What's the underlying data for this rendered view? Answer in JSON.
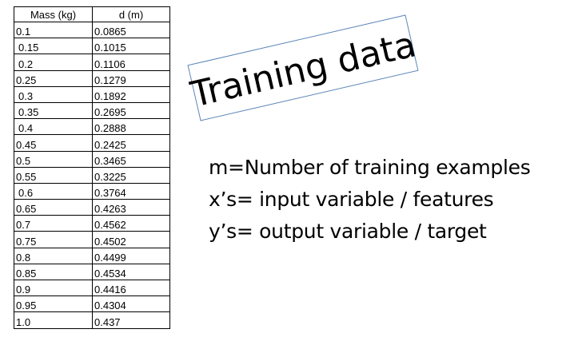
{
  "table": {
    "headers": {
      "mass": "Mass (kg)",
      "d": "d (m)"
    },
    "rows": [
      {
        "mass": "0.1",
        "d": "0.0865",
        "indent": false
      },
      {
        "mass": "0.15",
        "d": "0.1015",
        "indent": true
      },
      {
        "mass": "0.2",
        "d": "0.1106",
        "indent": true
      },
      {
        "mass": "0.25",
        "d": "0.1279",
        "indent": false
      },
      {
        "mass": "0.3",
        "d": "0.1892",
        "indent": true
      },
      {
        "mass": "0.35",
        "d": "0.2695",
        "indent": true
      },
      {
        "mass": "0.4",
        "d": "0.2888",
        "indent": true
      },
      {
        "mass": "0.45",
        "d": "0.2425",
        "indent": false
      },
      {
        "mass": "0.5",
        "d": "0.3465",
        "indent": false
      },
      {
        "mass": "0.55",
        "d": "0.3225",
        "indent": false
      },
      {
        "mass": "0.6",
        "d": "0.3764",
        "indent": true
      },
      {
        "mass": "0.65",
        "d": "0.4263",
        "indent": false
      },
      {
        "mass": "0.7",
        "d": "0.4562",
        "indent": false
      },
      {
        "mass": "0.75",
        "d": "0.4502",
        "indent": false
      },
      {
        "mass": "0.8",
        "d": "0.4499",
        "indent": false
      },
      {
        "mass": "0.85",
        "d": "0.4534",
        "indent": false
      },
      {
        "mass": "0.9",
        "d": "0.4416",
        "indent": false
      },
      {
        "mass": "0.95",
        "d": "0.4304",
        "indent": false
      },
      {
        "mass": "1.0",
        "d": "0.437",
        "indent": false
      }
    ]
  },
  "title": "Training data",
  "title_border_color": "#5b86b8",
  "definitions": [
    "m=Number of training examples",
    "x’s= input variable / features",
    "y’s= output variable / target"
  ]
}
